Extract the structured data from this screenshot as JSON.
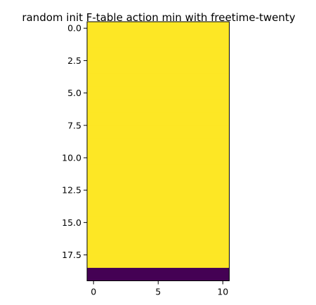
{
  "chart_data": {
    "type": "heatmap",
    "title": "random init F-table action min with freetime-twenty",
    "xlabel": "",
    "ylabel": "",
    "n_rows": 20,
    "n_cols": 11,
    "x_range": [
      -0.5,
      10.5
    ],
    "y_range": [
      19.5,
      -0.5
    ],
    "y_inverted": true,
    "grid": false,
    "colormap": "viridis",
    "x_ticks": [
      0,
      5,
      10
    ],
    "x_tick_labels": [
      "0",
      "5",
      "10"
    ],
    "y_ticks": [
      0,
      2.5,
      5,
      7.5,
      10,
      12.5,
      15,
      17.5
    ],
    "y_tick_labels": [
      "0.0",
      "2.5",
      "5.0",
      "7.5",
      "10.0",
      "12.5",
      "15.0",
      "17.5"
    ],
    "row_values": [
      1,
      1,
      1,
      1,
      1,
      1,
      1,
      1,
      1,
      1,
      1,
      1,
      1,
      1,
      1,
      1,
      1,
      1,
      1,
      0
    ],
    "colors": {
      "high": "#fde725",
      "low": "#440154"
    }
  }
}
